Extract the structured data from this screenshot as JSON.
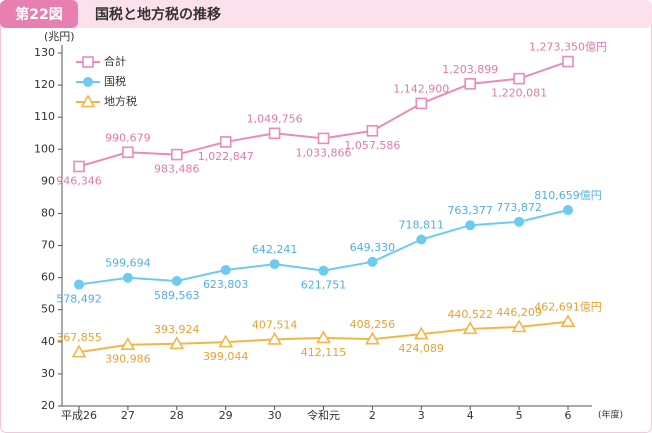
{
  "chart_data": {
    "type": "line",
    "figure_label": "第22図",
    "title": "国税と地方税の推移",
    "y_unit": "(兆円)",
    "x_unit": "(年度)",
    "categories": [
      "平成26",
      "27",
      "28",
      "29",
      "30",
      "令和元",
      "2",
      "3",
      "4",
      "5",
      "6"
    ],
    "ylim": [
      20,
      130
    ],
    "yticks": [
      20,
      30,
      40,
      50,
      60,
      70,
      80,
      90,
      100,
      110,
      120,
      130
    ],
    "series": [
      {
        "name": "合計",
        "color": "#e98bbb",
        "marker": "square",
        "values": [
          94.6346,
          99.0679,
          98.3486,
          102.2847,
          104.9756,
          103.3866,
          105.7586,
          114.29,
          120.3899,
          122.0081,
          127.335
        ],
        "value_labels": [
          "946,346",
          "990,679",
          "983,486",
          "1,022,847",
          "1,049,756",
          "1,033,866",
          "1,057,586",
          "1,142,900",
          "1,203,899",
          "1,220,081",
          "1,273,350億円"
        ]
      },
      {
        "name": "国税",
        "color": "#6dcbef",
        "marker": "circle",
        "values": [
          57.8492,
          59.9694,
          58.9563,
          62.3803,
          64.2241,
          62.1751,
          64.933,
          71.8811,
          76.3377,
          77.3872,
          81.0659
        ],
        "value_labels": [
          "578,492",
          "599,694",
          "589,563",
          "623,803",
          "642,241",
          "621,751",
          "649,330",
          "718,811",
          "763,377",
          "773,872",
          "810,659億円"
        ]
      },
      {
        "name": "地方税",
        "color": "#f3b646",
        "marker": "triangle",
        "values": [
          36.7855,
          39.0986,
          39.3924,
          39.9044,
          40.7514,
          41.2115,
          40.8256,
          42.4089,
          44.0522,
          44.6209,
          46.2691
        ],
        "value_labels": [
          "367,855",
          "390,986",
          "393,924",
          "399,044",
          "407,514",
          "412,115",
          "408,256",
          "424,089",
          "440,522",
          "446,209",
          "462,691億円"
        ]
      }
    ]
  }
}
